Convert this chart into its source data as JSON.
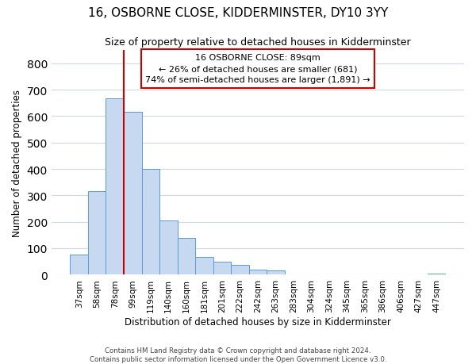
{
  "title": "16, OSBORNE CLOSE, KIDDERMINSTER, DY10 3YY",
  "subtitle": "Size of property relative to detached houses in Kidderminster",
  "xlabel": "Distribution of detached houses by size in Kidderminster",
  "ylabel": "Number of detached properties",
  "bar_labels": [
    "37sqm",
    "58sqm",
    "78sqm",
    "99sqm",
    "119sqm",
    "140sqm",
    "160sqm",
    "181sqm",
    "201sqm",
    "222sqm",
    "242sqm",
    "263sqm",
    "283sqm",
    "304sqm",
    "324sqm",
    "345sqm",
    "365sqm",
    "386sqm",
    "406sqm",
    "427sqm",
    "447sqm"
  ],
  "bar_values": [
    75,
    315,
    668,
    615,
    400,
    205,
    138,
    68,
    48,
    38,
    18,
    15,
    0,
    0,
    0,
    0,
    0,
    0,
    0,
    0,
    5
  ],
  "bar_color": "#c6d9f1",
  "bar_edge_color": "#5b9bd5",
  "annotation_text1": "16 OSBORNE CLOSE: 89sqm",
  "annotation_text2": "← 26% of detached houses are smaller (681)",
  "annotation_text3": "74% of semi-detached houses are larger (1,891) →",
  "ylim": [
    0,
    850
  ],
  "yticks": [
    0,
    100,
    200,
    300,
    400,
    500,
    600,
    700,
    800
  ],
  "footer_line1": "Contains HM Land Registry data © Crown copyright and database right 2024.",
  "footer_line2": "Contains public sector information licensed under the Open Government Licence v3.0.",
  "vline_color": "#cc0000",
  "box_edge_color": "#cc0000",
  "background_color": "#ffffff",
  "grid_color": "#d0d8e8"
}
